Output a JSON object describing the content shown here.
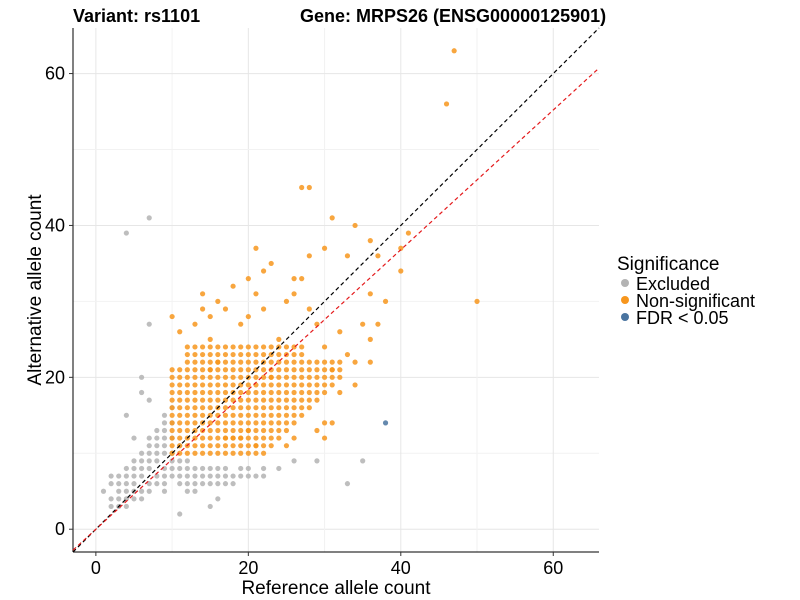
{
  "chart_data": {
    "type": "scatter",
    "title_left": "Variant: rs1101",
    "title_right": "Gene: MRPS26 (ENSG00000125901)",
    "xlabel": "Reference allele count",
    "ylabel": "Alternative allele count",
    "xlim": [
      -3,
      66
    ],
    "ylim": [
      -3,
      66
    ],
    "xticks": [
      0,
      20,
      40,
      60
    ],
    "yticks": [
      0,
      20,
      40,
      60
    ],
    "grid": true,
    "reference_lines": [
      {
        "name": "identity",
        "color": "#000000",
        "style": "dashed",
        "slope": 1.0,
        "intercept": 0
      },
      {
        "name": "fit",
        "color": "#e41a1c",
        "style": "dashed",
        "slope": 0.92,
        "intercept": 0
      }
    ],
    "legend": {
      "title": "Significance",
      "position": "right",
      "entries": [
        {
          "label": "Excluded",
          "color": "#b3b3b3"
        },
        {
          "label": "Non-significant",
          "color": "#f7961d"
        },
        {
          "label": "FDR < 0.05",
          "color": "#4a74a0"
        }
      ]
    },
    "series": [
      {
        "name": "Excluded",
        "color": "#b3b3b3",
        "points": [
          [
            1,
            5
          ],
          [
            2,
            6
          ],
          [
            2,
            7
          ],
          [
            2,
            4
          ],
          [
            3,
            4
          ],
          [
            3,
            6
          ],
          [
            3,
            7
          ],
          [
            3,
            5
          ],
          [
            4,
            3
          ],
          [
            4,
            6
          ],
          [
            4,
            7
          ],
          [
            4,
            8
          ],
          [
            4,
            5
          ],
          [
            5,
            7
          ],
          [
            5,
            8
          ],
          [
            5,
            9
          ],
          [
            5,
            5
          ],
          [
            5,
            4
          ],
          [
            5,
            6
          ],
          [
            6,
            9
          ],
          [
            6,
            10
          ],
          [
            6,
            8
          ],
          [
            6,
            7
          ],
          [
            6,
            5
          ],
          [
            6,
            4
          ],
          [
            7,
            11
          ],
          [
            7,
            12
          ],
          [
            7,
            10
          ],
          [
            7,
            9
          ],
          [
            7,
            6
          ],
          [
            7,
            5
          ],
          [
            7,
            8
          ],
          [
            8,
            13
          ],
          [
            8,
            12
          ],
          [
            8,
            11
          ],
          [
            8,
            10
          ],
          [
            8,
            9
          ],
          [
            8,
            7
          ],
          [
            8,
            6
          ],
          [
            9,
            15
          ],
          [
            9,
            14
          ],
          [
            9,
            13
          ],
          [
            9,
            12
          ],
          [
            9,
            11
          ],
          [
            9,
            10
          ],
          [
            9,
            8
          ],
          [
            9,
            7
          ],
          [
            9,
            6
          ],
          [
            10,
            16
          ],
          [
            10,
            14
          ],
          [
            10,
            12
          ],
          [
            10,
            10
          ],
          [
            10,
            9
          ],
          [
            10,
            8
          ],
          [
            10,
            7
          ],
          [
            11,
            11
          ],
          [
            11,
            9
          ],
          [
            11,
            8
          ],
          [
            11,
            7
          ],
          [
            11,
            6
          ],
          [
            12,
            9
          ],
          [
            12,
            8
          ],
          [
            12,
            7
          ],
          [
            12,
            6
          ],
          [
            13,
            8
          ],
          [
            13,
            7
          ],
          [
            13,
            6
          ],
          [
            14,
            8
          ],
          [
            14,
            7
          ],
          [
            14,
            6
          ],
          [
            15,
            8
          ],
          [
            15,
            7
          ],
          [
            15,
            6
          ],
          [
            16,
            8
          ],
          [
            16,
            7
          ],
          [
            16,
            6
          ],
          [
            17,
            8
          ],
          [
            17,
            7
          ],
          [
            17,
            6
          ],
          [
            18,
            7
          ],
          [
            18,
            6
          ],
          [
            19,
            8
          ],
          [
            19,
            7
          ],
          [
            20,
            8
          ],
          [
            20,
            7
          ],
          [
            21,
            7
          ],
          [
            22,
            8
          ],
          [
            22,
            7
          ],
          [
            24,
            8
          ],
          [
            26,
            9
          ],
          [
            29,
            9
          ],
          [
            33,
            6
          ],
          [
            35,
            9
          ],
          [
            4,
            39
          ],
          [
            7,
            41
          ],
          [
            7,
            27
          ],
          [
            6,
            20
          ],
          [
            4,
            15
          ],
          [
            3,
            3
          ],
          [
            4,
            4
          ],
          [
            11,
            2
          ],
          [
            15,
            3
          ],
          [
            16,
            4
          ],
          [
            12,
            5
          ],
          [
            2,
            3
          ],
          [
            6,
            18
          ],
          [
            7,
            17
          ],
          [
            5,
            12
          ],
          [
            13,
            5
          ],
          [
            9,
            5
          ]
        ]
      },
      {
        "name": "Non-significant",
        "color": "#f7961d",
        "points": "generated"
      },
      {
        "name": "FDR < 0.05",
        "color": "#4a74a0",
        "points": [
          [
            38,
            14
          ]
        ]
      }
    ],
    "nonsig_outliers": [
      [
        47,
        63
      ],
      [
        46,
        56
      ],
      [
        50,
        30
      ],
      [
        27,
        45
      ],
      [
        28,
        45
      ],
      [
        31,
        41
      ],
      [
        30,
        37
      ],
      [
        28,
        36
      ],
      [
        33,
        36
      ],
      [
        34,
        40
      ],
      [
        37,
        36
      ],
      [
        36,
        38
      ],
      [
        40,
        37
      ],
      [
        41,
        39
      ],
      [
        40,
        34
      ],
      [
        36,
        31
      ],
      [
        38,
        30
      ],
      [
        37,
        27
      ],
      [
        36,
        25
      ],
      [
        36,
        22
      ],
      [
        34,
        22
      ],
      [
        33,
        23
      ],
      [
        35,
        27
      ],
      [
        34,
        19
      ],
      [
        30,
        14
      ],
      [
        31,
        14
      ],
      [
        26,
        12
      ],
      [
        23,
        20
      ],
      [
        24,
        25
      ],
      [
        25,
        30
      ],
      [
        26,
        33
      ],
      [
        27,
        33
      ],
      [
        22,
        34
      ],
      [
        21,
        31
      ],
      [
        22,
        29
      ],
      [
        16,
        30
      ],
      [
        15,
        28
      ],
      [
        15,
        25
      ],
      [
        14,
        29
      ],
      [
        13,
        27
      ],
      [
        10,
        28
      ],
      [
        11,
        26
      ],
      [
        14,
        31
      ],
      [
        19,
        27
      ],
      [
        20,
        28
      ],
      [
        18,
        32
      ],
      [
        23,
        35
      ],
      [
        21,
        37
      ],
      [
        20,
        33
      ],
      [
        17,
        29
      ],
      [
        16,
        22
      ],
      [
        15,
        21
      ],
      [
        26,
        31
      ],
      [
        28,
        29
      ],
      [
        29,
        27
      ],
      [
        32,
        26
      ],
      [
        30,
        24
      ],
      [
        31,
        21
      ],
      [
        32,
        18
      ],
      [
        29,
        13
      ],
      [
        30,
        12
      ],
      [
        25,
        11
      ],
      [
        21,
        11
      ],
      [
        19,
        12
      ],
      [
        20,
        13
      ],
      [
        18,
        12
      ],
      [
        17,
        12
      ]
    ],
    "nonsig_grid": {
      "x_min": 10,
      "x_max": 32,
      "y_min": 10,
      "y_max": 24
    }
  }
}
